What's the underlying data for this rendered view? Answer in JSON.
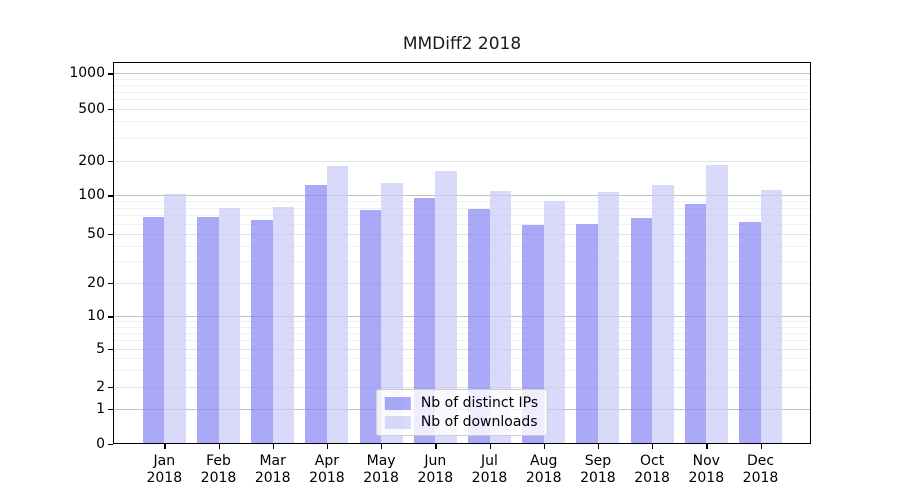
{
  "figure": {
    "background": "#ffffff"
  },
  "chart_data": {
    "type": "bar",
    "title": "MMDiff2 2018",
    "categories": [
      "Jan 2018",
      "Feb 2018",
      "Mar 2018",
      "Apr 2018",
      "May 2018",
      "Jun 2018",
      "Jul 2018",
      "Aug 2018",
      "Sep 2018",
      "Oct 2018",
      "Nov 2018",
      "Dec 2018"
    ],
    "series": [
      {
        "name": "Nb of distinct IPs",
        "color": "rgba(132,132,244,0.7)",
        "color_hex_on_white": "#a9a9f8",
        "values": [
          67,
          67,
          64,
          122,
          76,
          95,
          78,
          59,
          60,
          66,
          86,
          62
        ]
      },
      {
        "name": "Nb of downloads",
        "color": "rgba(201,201,248,0.7)",
        "color_hex_on_white": "#d9d9fa",
        "values": [
          102,
          80,
          81,
          180,
          127,
          163,
          108,
          90,
          106,
          122,
          183,
          112
        ]
      }
    ],
    "xlabel": "",
    "ylabel": "",
    "yscale": "symlog",
    "yticks": [
      0,
      1,
      2,
      5,
      10,
      20,
      50,
      100,
      200,
      500,
      1000
    ],
    "ylim": [
      0,
      1200
    ],
    "grid": true,
    "legend_position": "lower center"
  },
  "colors": {
    "axis": "#000000",
    "grid_major": "#c3c3c3",
    "grid_mid": "#e2e2e2",
    "grid_minor": "#f0f0f0",
    "legend_border": "#cccccc",
    "legend_bg": "rgba(255,255,255,0.8)",
    "text": "#000000"
  }
}
